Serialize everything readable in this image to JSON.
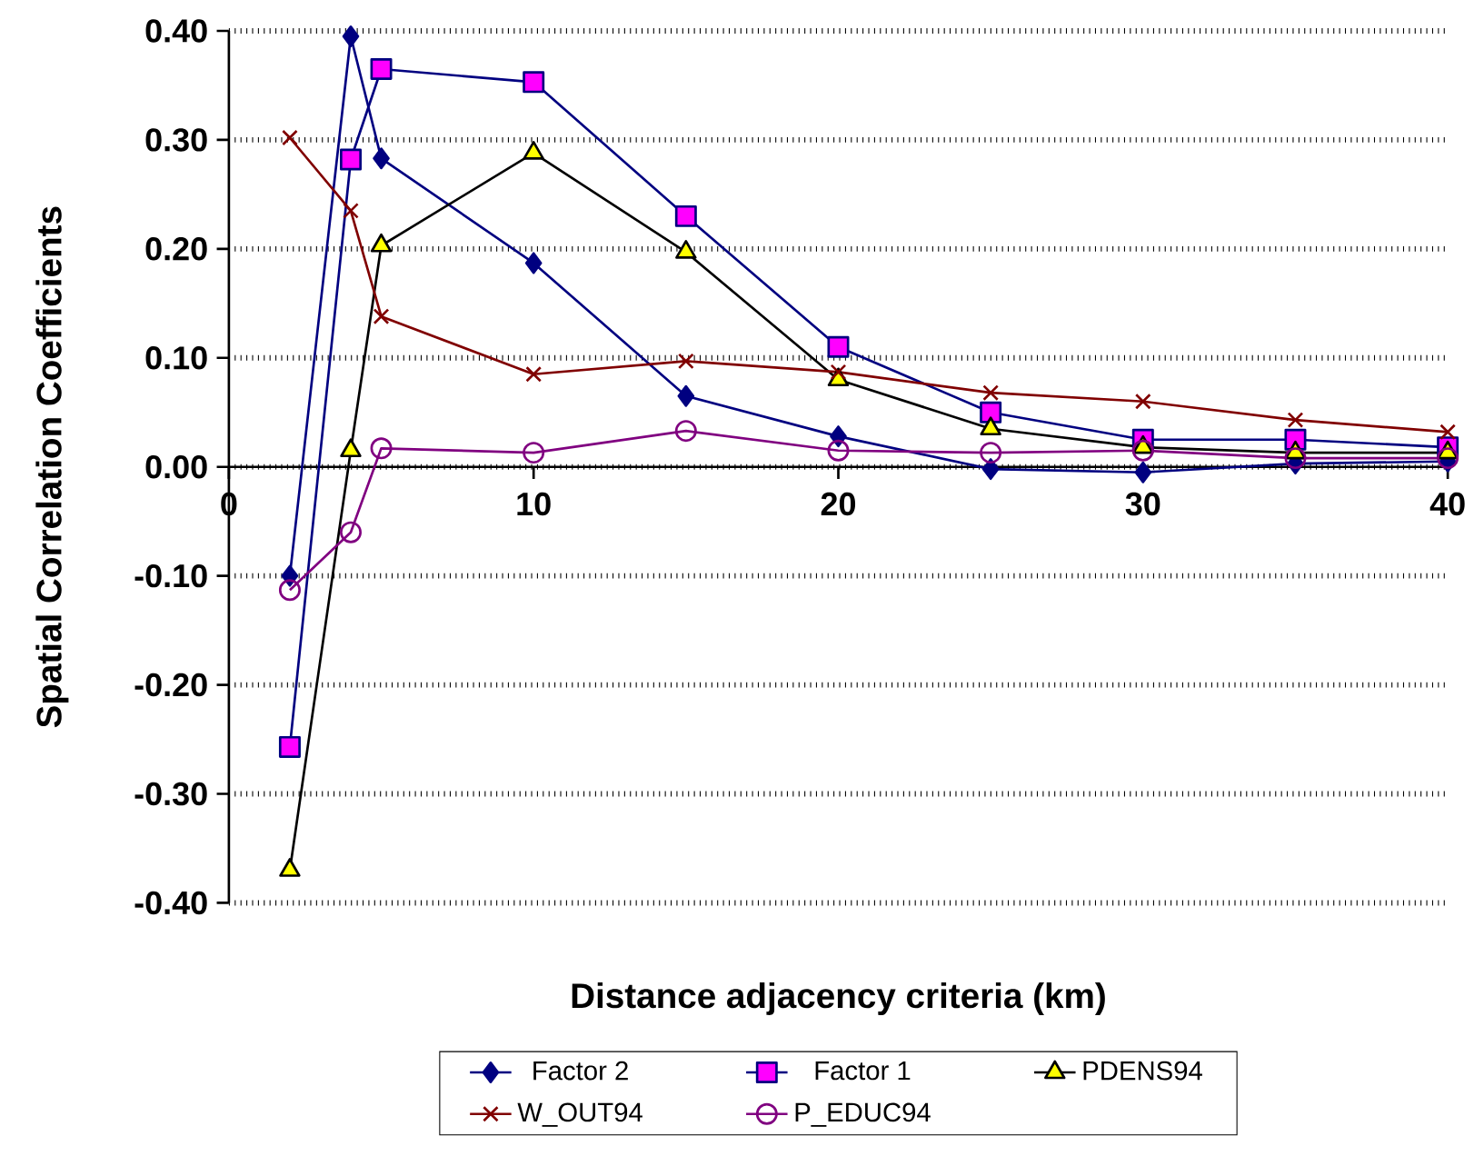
{
  "chart_data": {
    "type": "line",
    "xlabel": "Distance adjacency criteria (km)",
    "ylabel": "Spatial Correlation Coefficients",
    "x": [
      2,
      4,
      5,
      10,
      15,
      20,
      25,
      30,
      35,
      40
    ],
    "series": [
      {
        "name": "Factor 2",
        "color": "#000080",
        "marker": "diamond",
        "colors": [
          "#000080",
          "#000080",
          "#000080",
          "#000080",
          "#000080",
          "#000080",
          "#000080",
          "#000080",
          "#000080",
          "#000080"
        ],
        "values": [
          -0.1,
          0.395,
          0.283,
          0.187,
          0.065,
          0.028,
          -0.002,
          -0.005,
          0.003,
          0.005
        ]
      },
      {
        "name": "Factor 1",
        "color": "#000080",
        "marker": "square",
        "colors": [
          "#ff00ff",
          "#ff00ff",
          "#ff00ff",
          "#ff00ff",
          "#ff00ff",
          "#ff00ff",
          "#ff00ff",
          "#ff00ff",
          "#ff00ff",
          "#ff00ff"
        ],
        "values": [
          -0.257,
          0.282,
          0.365,
          0.353,
          0.23,
          0.11,
          0.05,
          0.025,
          0.025,
          0.018
        ]
      },
      {
        "name": "PDENS94",
        "color": "#000000",
        "marker": "triangle",
        "colors": [
          "#ffff00",
          "#ffff00",
          "#ffff00",
          "#ffff00",
          "#ffff00",
          "#ffff00",
          "#ffff00",
          "#ffff00",
          "#ffff00",
          "#ffff00"
        ],
        "values": [
          -0.37,
          0.015,
          0.203,
          0.288,
          0.197,
          0.08,
          0.035,
          0.018,
          0.013,
          0.013
        ]
      },
      {
        "name": "W_OUT94",
        "color": "#800000",
        "marker": "cross",
        "values": [
          0.302,
          0.235,
          0.138,
          0.085,
          0.097,
          0.087,
          0.068,
          0.06,
          0.043,
          0.032
        ]
      },
      {
        "name": "P_EDUC94",
        "color": "#800080",
        "marker": "circle",
        "values": [
          -0.113,
          -0.06,
          0.017,
          0.013,
          0.033,
          0.015,
          0.013,
          0.015,
          0.008,
          0.008
        ]
      }
    ],
    "xlim": [
      0,
      40
    ],
    "xticks": [
      0,
      10,
      20,
      30,
      40
    ],
    "ylim": [
      -0.4,
      0.4
    ],
    "yticks": [
      {
        "value": -0.4,
        "label": "-0.40"
      },
      {
        "value": -0.3,
        "label": "-0.30"
      },
      {
        "value": -0.2,
        "label": "-0.20"
      },
      {
        "value": -0.1,
        "label": "-0.10"
      },
      {
        "value": 0,
        "label": "0.00"
      },
      {
        "value": 0.1,
        "label": "0.10"
      },
      {
        "value": 0.2,
        "label": "0.20"
      },
      {
        "value": 0.3,
        "label": "0.30"
      },
      {
        "value": 0.4,
        "label": "0.40"
      }
    ],
    "grid": "y",
    "legend": "bottom",
    "line_style": "solid"
  }
}
